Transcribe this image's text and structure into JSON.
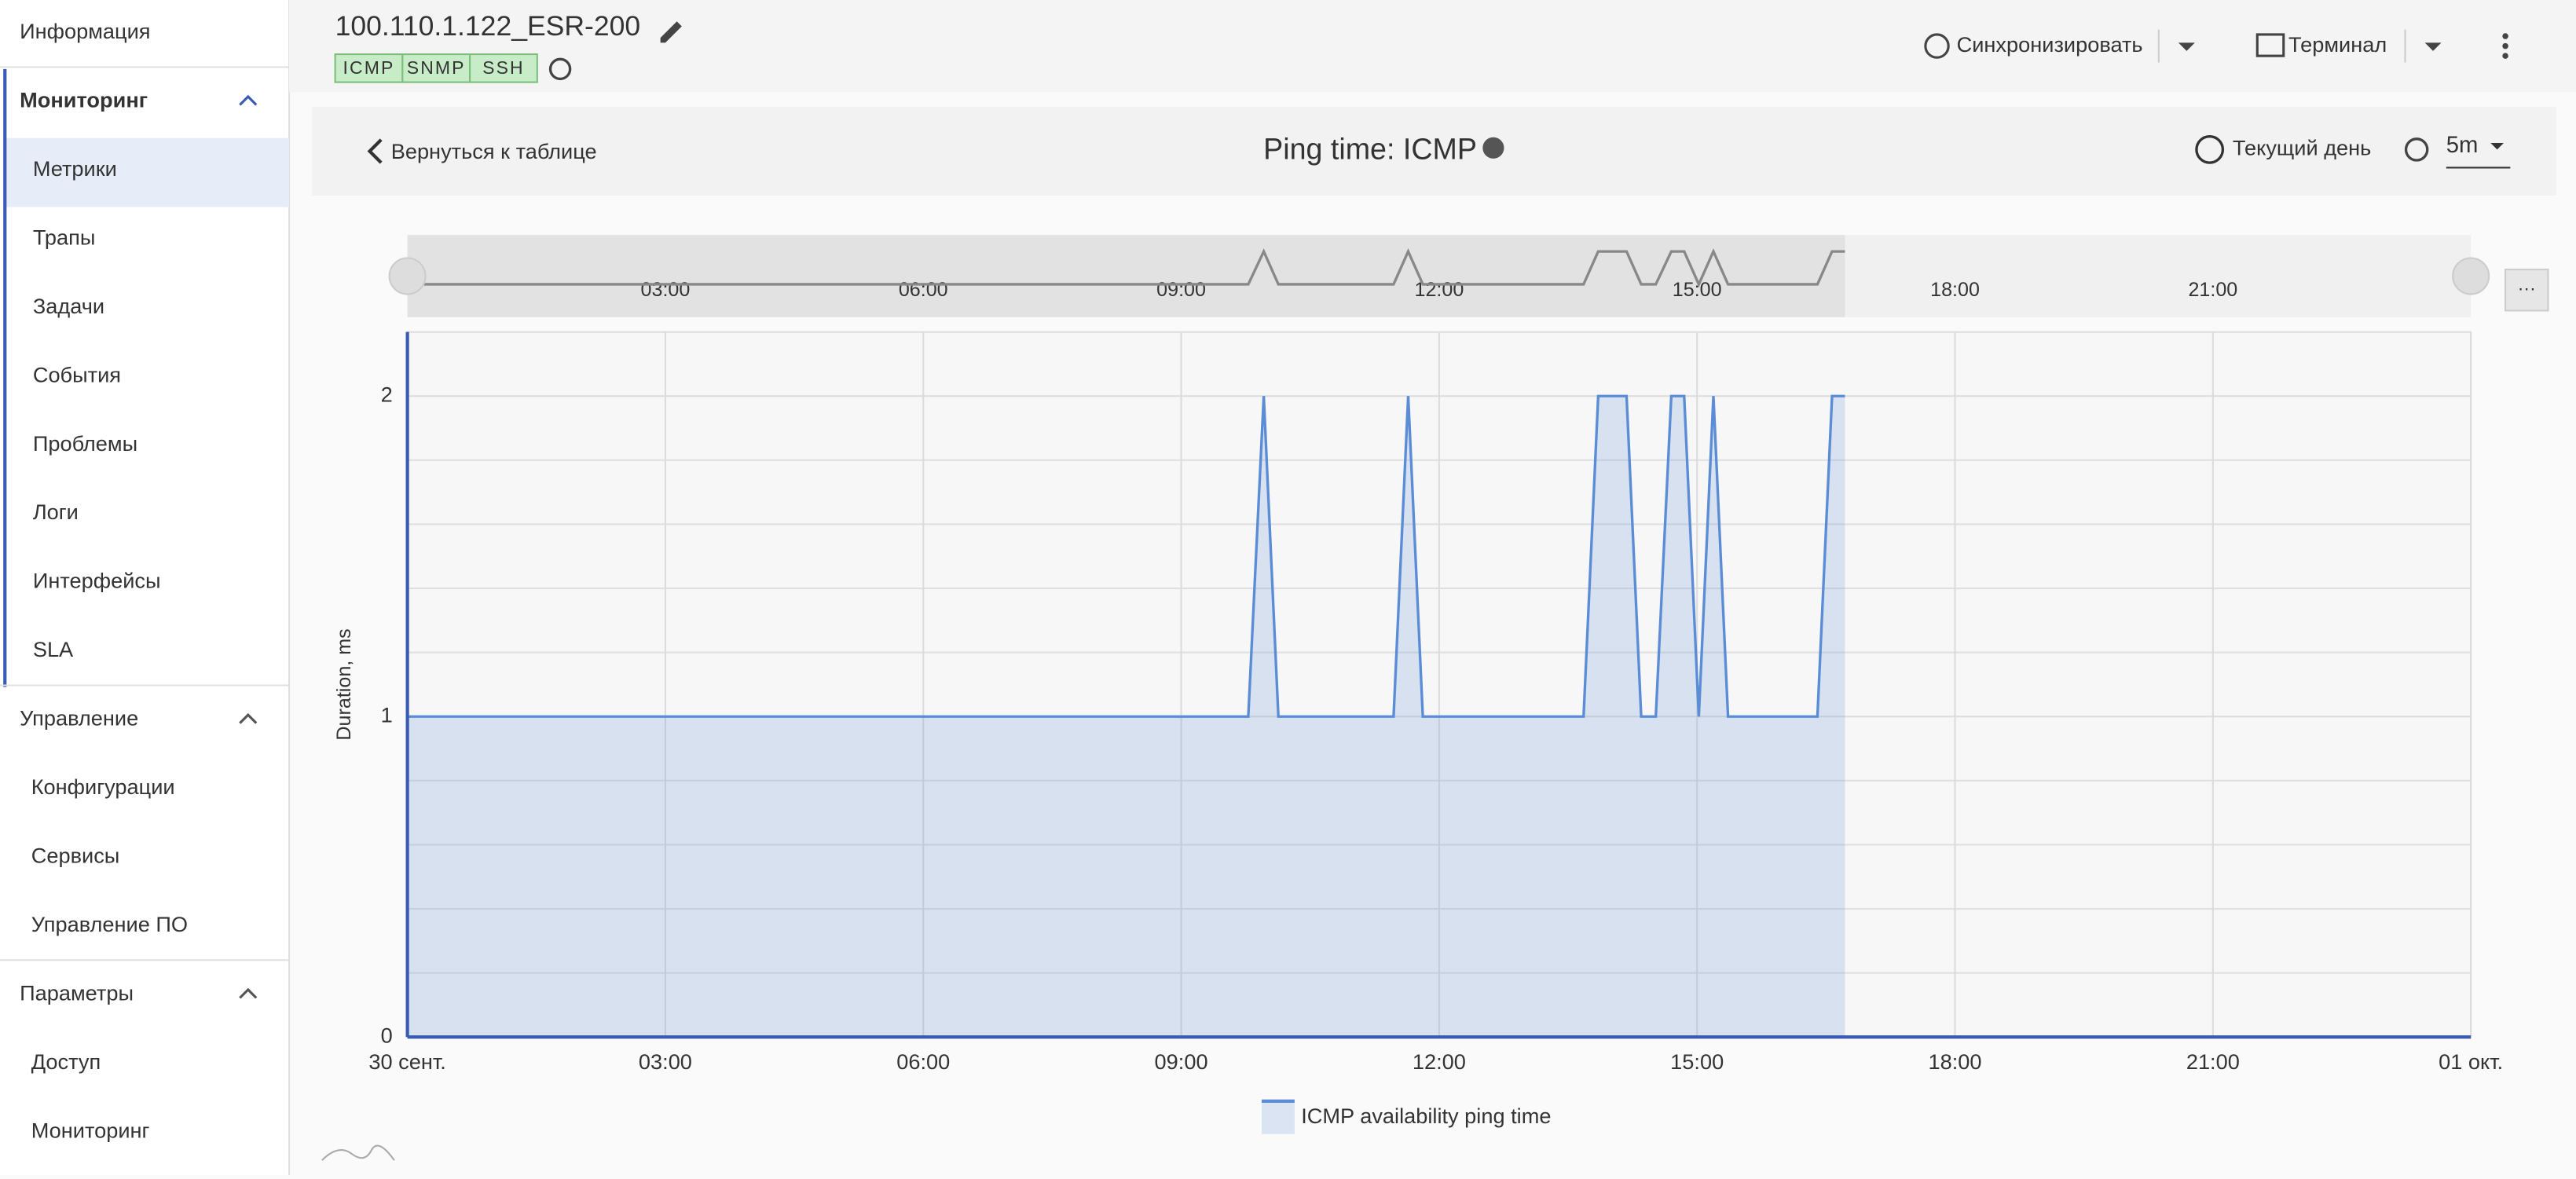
{
  "sidebar": {
    "top": "Информация",
    "sections": [
      {
        "title": "Мониторинг",
        "items": [
          "Метрики",
          "Трапы",
          "Задачи",
          "События",
          "Проблемы",
          "Логи",
          "Интерфейсы",
          "SLA"
        ]
      },
      {
        "title": "Управление",
        "items": [
          "Конфигурации",
          "Сервисы",
          "Управление ПО"
        ]
      },
      {
        "title": "Параметры",
        "items": [
          "Доступ",
          "Мониторинг"
        ]
      }
    ]
  },
  "header": {
    "title": "100.110.1.122_ESR-200",
    "tags": [
      "ICMP",
      "SNMP",
      "SSH"
    ],
    "actions": [
      "Синхронизировать",
      "Терминал"
    ]
  },
  "toolbar": {
    "back": "Вернуться к таблице",
    "period": "Текущий день",
    "interval": "5m"
  },
  "chart_data": {
    "type": "area",
    "title": "Ping time: ICMP",
    "y_label": "Duration, ms",
    "x": [
      0,
      9.78,
      9.96,
      10.13,
      11.47,
      11.64,
      11.81,
      13.68,
      13.85,
      14.18,
      14.35,
      14.52,
      14.7,
      14.85,
      15.02,
      15.19,
      15.36,
      16.4,
      16.57,
      16.72
    ],
    "series": [
      {
        "name": "ICMP availability ping time",
        "color": "#5b8dd6",
        "values": [
          1,
          1,
          2,
          1,
          1,
          2,
          1,
          1,
          2,
          2,
          1,
          1,
          2,
          2,
          1,
          2,
          1,
          1,
          2,
          2
        ]
      }
    ],
    "xlim": [
      0,
      24
    ],
    "xticks": [
      {
        "value": 0,
        "label": "30 сент."
      },
      {
        "value": 3,
        "label": "03:00"
      },
      {
        "value": 6,
        "label": "06:00"
      },
      {
        "value": 9,
        "label": "09:00"
      },
      {
        "value": 12,
        "label": "12:00"
      },
      {
        "value": 15,
        "label": "15:00"
      },
      {
        "value": 18,
        "label": "18:00"
      },
      {
        "value": 21,
        "label": "21:00"
      },
      {
        "value": 24,
        "label": "01 окт."
      }
    ],
    "ylim": [
      0,
      2.2
    ],
    "yticks": [
      0,
      1,
      2
    ],
    "y_minor_ticks": [
      0.2,
      0.4,
      0.6,
      0.8,
      1.2,
      1.4,
      1.6,
      1.8,
      2.2
    ],
    "grid": true,
    "legend": "bottom"
  }
}
